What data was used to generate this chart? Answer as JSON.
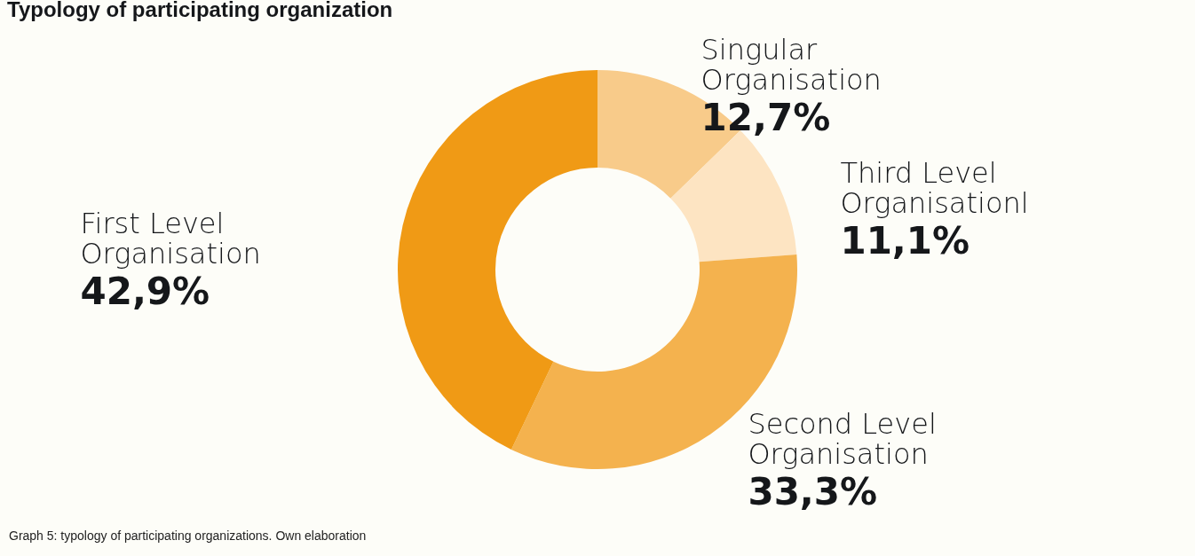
{
  "chart_data": {
    "type": "donut",
    "title": "Typology of participating organization",
    "categories": [
      "Singular Organisation",
      "Third Level Organisationl",
      "Second Level Organisation",
      "First Level Organisation"
    ],
    "values": [
      12.7,
      11.1,
      33.3,
      42.9
    ],
    "colors": [
      "#f8cb8a",
      "#fde4c2",
      "#f4b24e",
      "#f09a15"
    ],
    "value_labels": [
      "12,7%",
      "11,1%",
      "33,3%",
      "42,9%"
    ],
    "annotations": [
      "Graph 5: typology of participating organizations. Own elaboration"
    ],
    "legend": false
  }
}
